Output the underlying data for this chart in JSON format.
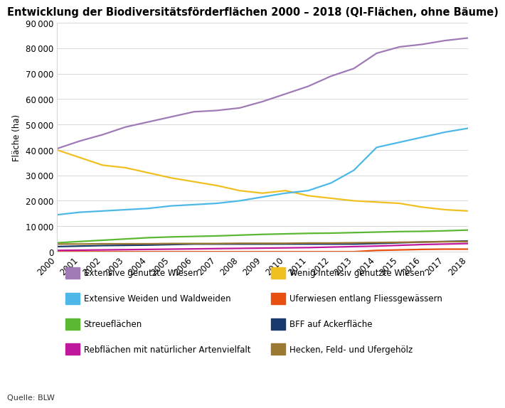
{
  "title": "Entwicklung der Biodiversitätsförderflächen 2000 – 2018 (QI-Flächen, ohne Bäume)",
  "ylabel": "Fläche (ha)",
  "source": "Quelle: BLW",
  "years": [
    2000,
    2001,
    2002,
    2003,
    2004,
    2005,
    2006,
    2007,
    2008,
    2009,
    2010,
    2011,
    2012,
    2013,
    2014,
    2015,
    2016,
    2017,
    2018
  ],
  "series": [
    {
      "label": "Extensive genutzte Wiesen",
      "color": "#a07ab5",
      "values": [
        40500,
        43500,
        46000,
        49000,
        51000,
        53000,
        55000,
        55500,
        56500,
        59000,
        62000,
        65000,
        69000,
        72000,
        78000,
        80500,
        81500,
        83000,
        84000
      ]
    },
    {
      "label": "Wenig intensiv genutzte Wiesen",
      "color": "#f0c020",
      "values": [
        40000,
        37000,
        34000,
        33000,
        31000,
        29000,
        27500,
        26000,
        24000,
        23000,
        24000,
        22000,
        21000,
        20000,
        19500,
        19000,
        17500,
        16500,
        16000
      ]
    },
    {
      "label": "Extensive Weiden und Waldweiden",
      "color": "#4db8e8",
      "values": [
        14500,
        15500,
        16000,
        16500,
        17000,
        18000,
        18500,
        19000,
        20000,
        21500,
        23000,
        24000,
        27000,
        32000,
        41000,
        43000,
        45000,
        47000,
        48500
      ]
    },
    {
      "label": "Uferwiesen entlang Fliessgewässern",
      "color": "#e85010",
      "values": [
        0,
        0,
        0,
        0,
        0,
        0,
        0,
        0,
        0,
        0,
        0,
        0,
        0,
        0,
        500,
        700,
        900,
        1000,
        1000
      ]
    },
    {
      "label": "Streueflächen",
      "color": "#5ab832",
      "values": [
        3500,
        4000,
        4500,
        5000,
        5500,
        5800,
        6000,
        6200,
        6500,
        6800,
        7000,
        7200,
        7300,
        7500,
        7700,
        7900,
        8000,
        8200,
        8500
      ]
    },
    {
      "label": "BFF auf Ackerfläche",
      "color": "#1a3a6e",
      "values": [
        2000,
        2200,
        2400,
        2500,
        2600,
        2800,
        3000,
        3000,
        3000,
        3000,
        3000,
        3000,
        3000,
        3000,
        3200,
        3500,
        3800,
        4000,
        4200
      ]
    },
    {
      "label": "Rebflächen mit natürlicher Artenvielfalt",
      "color": "#c0189c",
      "values": [
        500,
        600,
        700,
        800,
        900,
        1000,
        1100,
        1200,
        1300,
        1400,
        1500,
        1600,
        1800,
        2000,
        2200,
        2500,
        2800,
        3000,
        3200
      ]
    },
    {
      "label": "Hecken, Feld- und Ufergehölz",
      "color": "#9c7832",
      "values": [
        3000,
        3000,
        3100,
        3100,
        3100,
        3200,
        3200,
        3200,
        3300,
        3300,
        3300,
        3400,
        3400,
        3500,
        3600,
        3700,
        3800,
        3900,
        4000
      ]
    }
  ],
  "ylim": [
    0,
    90000
  ],
  "yticks": [
    0,
    10000,
    20000,
    30000,
    40000,
    50000,
    60000,
    70000,
    80000,
    90000
  ],
  "background_color": "#ffffff",
  "plot_bg": "#ffffff",
  "grid_color": "#d8d8d8",
  "title_fontsize": 10.5,
  "axis_fontsize": 8.5,
  "legend_fontsize": 8.5,
  "legend_cols": [
    [
      "Extensive genutzte Wiesen",
      "Extensive Weiden und Waldweiden",
      "Streueflächen",
      "Rebflächen mit natürlicher Artenvielfalt"
    ],
    [
      "Wenig intensiv genutzte Wiesen",
      "Uferwiesen entlang Fliessgewässern",
      "BFF auf Ackerfläche",
      "Hecken, Feld- und Ufergehölz"
    ]
  ]
}
